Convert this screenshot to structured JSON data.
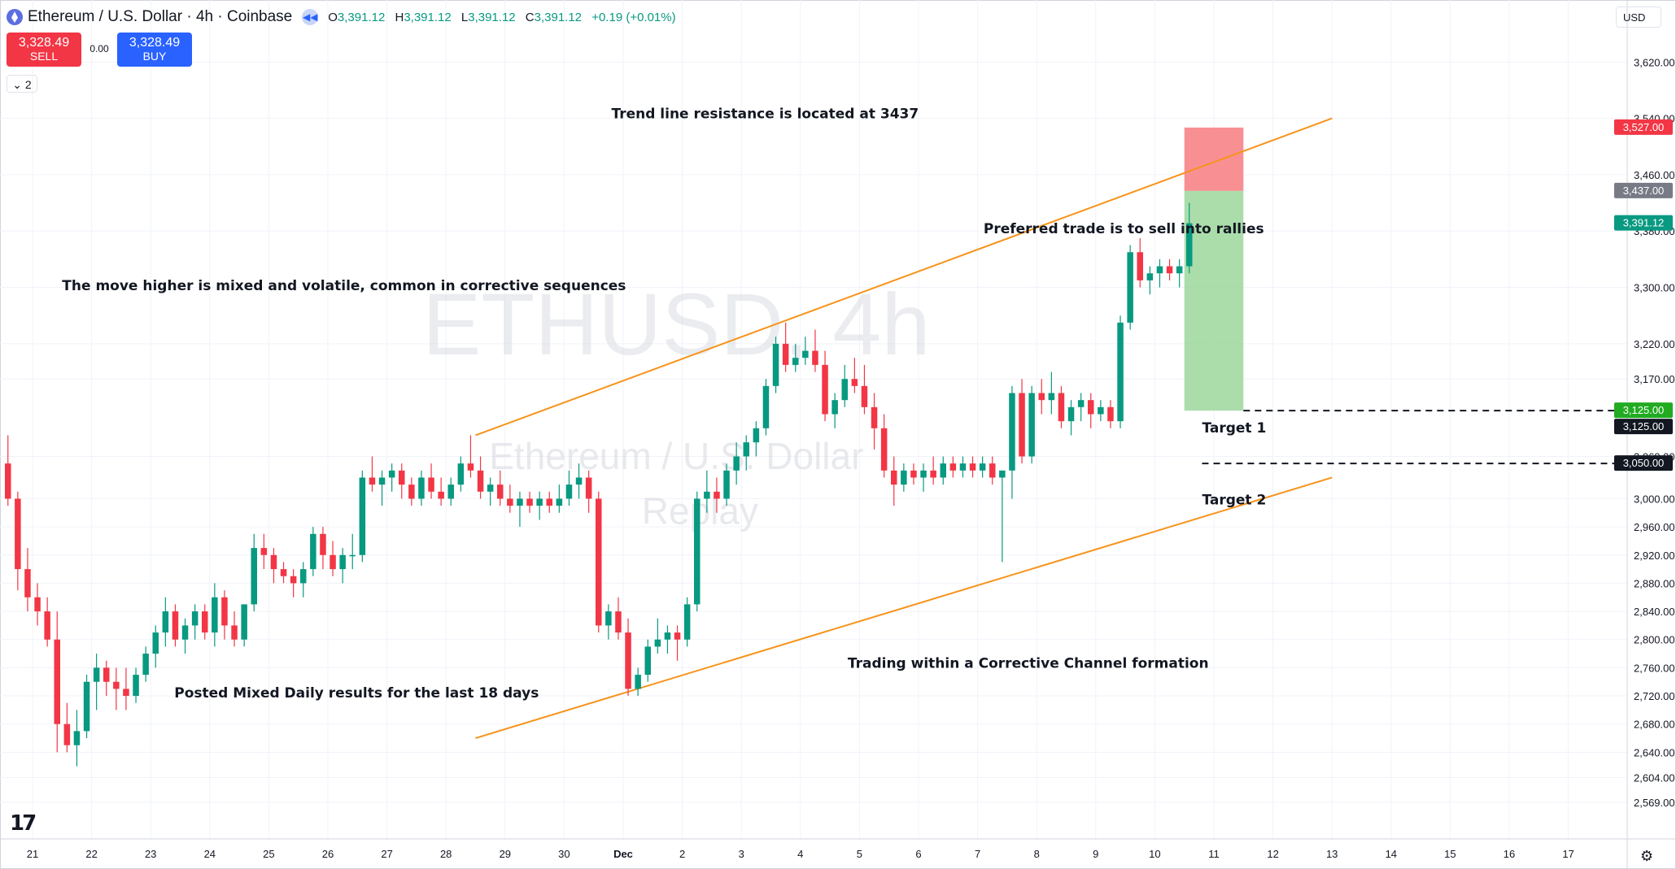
{
  "header": {
    "title": "Ethereum / U.S. Dollar · 4h · Coinbase",
    "ohlc": [
      {
        "k": "O",
        "v": "3,391.12"
      },
      {
        "k": "H",
        "v": "3,391.12"
      },
      {
        "k": "L",
        "v": "3,391.12"
      },
      {
        "k": "C",
        "v": "3,391.12"
      }
    ],
    "change": "+0.19 (+0.01%)"
  },
  "trade": {
    "sell_price": "3,328.49",
    "sell_label": "SELL",
    "spread": "0.00",
    "buy_price": "3,328.49",
    "buy_label": "BUY",
    "collapse_label": "⌄ 2"
  },
  "currency": "USD",
  "logo_text": "17",
  "colors": {
    "up": "#089981",
    "down": "#f23645",
    "channel": "#f7931a",
    "grid": "#f0f3fa",
    "stop": "#f77c80",
    "target": "#8fd18f"
  },
  "chart_data": {
    "type": "candlestick",
    "ylim": [
      2540,
      3685
    ],
    "y_ticks": [
      3620,
      3540,
      3460,
      3380,
      3300,
      3220,
      3170,
      3060,
      3000,
      2960,
      2920,
      2880,
      2840,
      2800,
      2760,
      2720,
      2680,
      2640,
      2604,
      2569
    ],
    "y_tick_labels": [
      "3,620.00",
      "3,540.00",
      "3,460.00",
      "3,380.00",
      "3,300.00",
      "3,220.00",
      "3,170.00",
      "3,060.00",
      "3,000.00",
      "2,960.00",
      "2,920.00",
      "2,880.00",
      "2,840.00",
      "2,800.00",
      "2,760.00",
      "2,720.00",
      "2,680.00",
      "2,640.00",
      "2,604.00",
      "2,569.00"
    ],
    "x_ticks": [
      "21",
      "22",
      "23",
      "24",
      "25",
      "26",
      "27",
      "28",
      "29",
      "30",
      "Dec",
      "2",
      "3",
      "4",
      "5",
      "6",
      "7",
      "8",
      "9",
      "10",
      "11",
      "12",
      "13",
      "14",
      "15",
      "16",
      "17"
    ],
    "candles_per_day": 6,
    "first_candle_offset_days": -0.5,
    "candles": [
      [
        3050,
        3090,
        2990,
        3000
      ],
      [
        3000,
        3010,
        2870,
        2900
      ],
      [
        2900,
        2930,
        2840,
        2860
      ],
      [
        2860,
        2880,
        2820,
        2840
      ],
      [
        2840,
        2860,
        2790,
        2800
      ],
      [
        2800,
        2840,
        2640,
        2680
      ],
      [
        2680,
        2710,
        2640,
        2650
      ],
      [
        2650,
        2700,
        2620,
        2670
      ],
      [
        2670,
        2750,
        2660,
        2740
      ],
      [
        2740,
        2780,
        2700,
        2760
      ],
      [
        2760,
        2770,
        2720,
        2740
      ],
      [
        2740,
        2760,
        2700,
        2730
      ],
      [
        2730,
        2760,
        2700,
        2720
      ],
      [
        2720,
        2760,
        2710,
        2750
      ],
      [
        2750,
        2790,
        2740,
        2780
      ],
      [
        2780,
        2820,
        2760,
        2810
      ],
      [
        2810,
        2860,
        2790,
        2840
      ],
      [
        2840,
        2850,
        2790,
        2800
      ],
      [
        2800,
        2830,
        2780,
        2820
      ],
      [
        2820,
        2850,
        2800,
        2840
      ],
      [
        2840,
        2850,
        2800,
        2810
      ],
      [
        2810,
        2880,
        2790,
        2860
      ],
      [
        2860,
        2870,
        2800,
        2820
      ],
      [
        2820,
        2840,
        2790,
        2800
      ],
      [
        2800,
        2850,
        2790,
        2850
      ],
      [
        2850,
        2950,
        2840,
        2930
      ],
      [
        2930,
        2950,
        2900,
        2920
      ],
      [
        2920,
        2930,
        2880,
        2900
      ],
      [
        2900,
        2910,
        2880,
        2890
      ],
      [
        2890,
        2900,
        2860,
        2880
      ],
      [
        2880,
        2910,
        2860,
        2900
      ],
      [
        2900,
        2960,
        2890,
        2950
      ],
      [
        2950,
        2960,
        2900,
        2920
      ],
      [
        2920,
        2940,
        2890,
        2900
      ],
      [
        2900,
        2930,
        2880,
        2920
      ],
      [
        2920,
        2950,
        2900,
        2920
      ],
      [
        2920,
        3040,
        2910,
        3030
      ],
      [
        3030,
        3060,
        3010,
        3020
      ],
      [
        3020,
        3040,
        2990,
        3030
      ],
      [
        3030,
        3050,
        3010,
        3040
      ],
      [
        3040,
        3050,
        3000,
        3020
      ],
      [
        3020,
        3030,
        2990,
        3000
      ],
      [
        3000,
        3040,
        2990,
        3030
      ],
      [
        3030,
        3050,
        3000,
        3010
      ],
      [
        3010,
        3030,
        2990,
        3000
      ],
      [
        3000,
        3030,
        2990,
        3020
      ],
      [
        3020,
        3060,
        3010,
        3050
      ],
      [
        3050,
        3090,
        3030,
        3040
      ],
      [
        3040,
        3060,
        3000,
        3010
      ],
      [
        3010,
        3030,
        2990,
        3020
      ],
      [
        3020,
        3040,
        2990,
        3000
      ],
      [
        3000,
        3020,
        2980,
        2990
      ],
      [
        2990,
        3010,
        2960,
        3000
      ],
      [
        3000,
        3010,
        2980,
        2990
      ],
      [
        2990,
        3010,
        2970,
        3000
      ],
      [
        3000,
        3010,
        2980,
        2990
      ],
      [
        2990,
        3020,
        2980,
        3000
      ],
      [
        3000,
        3040,
        2990,
        3020
      ],
      [
        3020,
        3050,
        3000,
        3030
      ],
      [
        3030,
        3040,
        2980,
        3000
      ],
      [
        3000,
        3010,
        2810,
        2820
      ],
      [
        2820,
        2850,
        2800,
        2840
      ],
      [
        2840,
        2860,
        2800,
        2810
      ],
      [
        2810,
        2830,
        2720,
        2730
      ],
      [
        2730,
        2760,
        2720,
        2750
      ],
      [
        2750,
        2800,
        2740,
        2790
      ],
      [
        2790,
        2830,
        2780,
        2800
      ],
      [
        2800,
        2820,
        2780,
        2810
      ],
      [
        2810,
        2820,
        2770,
        2800
      ],
      [
        2800,
        2860,
        2790,
        2850
      ],
      [
        2850,
        3010,
        2840,
        3000
      ],
      [
        3000,
        3040,
        2980,
        3010
      ],
      [
        3010,
        3030,
        2980,
        3000
      ],
      [
        3000,
        3050,
        2990,
        3040
      ],
      [
        3040,
        3080,
        3020,
        3060
      ],
      [
        3060,
        3090,
        3040,
        3080
      ],
      [
        3080,
        3110,
        3060,
        3100
      ],
      [
        3100,
        3170,
        3090,
        3160
      ],
      [
        3160,
        3230,
        3150,
        3220
      ],
      [
        3220,
        3250,
        3180,
        3190
      ],
      [
        3190,
        3220,
        3180,
        3200
      ],
      [
        3200,
        3230,
        3190,
        3210
      ],
      [
        3210,
        3240,
        3180,
        3190
      ],
      [
        3190,
        3210,
        3110,
        3120
      ],
      [
        3120,
        3150,
        3100,
        3140
      ],
      [
        3140,
        3190,
        3130,
        3170
      ],
      [
        3170,
        3200,
        3150,
        3160
      ],
      [
        3160,
        3190,
        3120,
        3130
      ],
      [
        3130,
        3150,
        3070,
        3100
      ],
      [
        3100,
        3120,
        3030,
        3040
      ],
      [
        3040,
        3060,
        2990,
        3020
      ],
      [
        3020,
        3050,
        3010,
        3040
      ],
      [
        3040,
        3050,
        3020,
        3030
      ],
      [
        3030,
        3050,
        3010,
        3040
      ],
      [
        3040,
        3060,
        3020,
        3030
      ],
      [
        3030,
        3060,
        3020,
        3050
      ],
      [
        3050,
        3060,
        3030,
        3040
      ],
      [
        3040,
        3060,
        3030,
        3050
      ],
      [
        3050,
        3060,
        3030,
        3040
      ],
      [
        3040,
        3060,
        3030,
        3050
      ],
      [
        3050,
        3060,
        3020,
        3030
      ],
      [
        3030,
        3040,
        2910,
        3040
      ],
      [
        3040,
        3160,
        3000,
        3150
      ],
      [
        3150,
        3170,
        3050,
        3060
      ],
      [
        3060,
        3160,
        3050,
        3150
      ],
      [
        3150,
        3170,
        3120,
        3140
      ],
      [
        3140,
        3180,
        3120,
        3150
      ],
      [
        3150,
        3160,
        3100,
        3110
      ],
      [
        3110,
        3140,
        3090,
        3130
      ],
      [
        3130,
        3150,
        3110,
        3140
      ],
      [
        3140,
        3150,
        3100,
        3120
      ],
      [
        3120,
        3140,
        3110,
        3130
      ],
      [
        3130,
        3140,
        3100,
        3110
      ],
      [
        3110,
        3260,
        3100,
        3250
      ],
      [
        3250,
        3360,
        3240,
        3350
      ],
      [
        3350,
        3370,
        3300,
        3310
      ],
      [
        3310,
        3330,
        3290,
        3320
      ],
      [
        3320,
        3340,
        3300,
        3330
      ],
      [
        3330,
        3340,
        3310,
        3320
      ],
      [
        3320,
        3340,
        3300,
        3330
      ],
      [
        3330,
        3420,
        3320,
        3391.12
      ]
    ],
    "annotations": [
      {
        "text": "Trend line resistance is located at 3437",
        "date": 9.8,
        "price": 3540
      },
      {
        "text": "The move higher is mixed and volatile, common in corrective sequences",
        "date": 0.5,
        "price": 3296
      },
      {
        "text": "Preferred trade is to sell into rallies",
        "date": 16.1,
        "price": 3377
      },
      {
        "text": "Posted Mixed Daily results for the last 18 days",
        "date": 2.4,
        "price": 2718
      },
      {
        "text": "Trading within a Corrective Channel formation",
        "date": 13.8,
        "price": 2760
      },
      {
        "text": "Target 1",
        "date": 19.8,
        "price": 3094
      },
      {
        "text": "Target 2",
        "date": 19.8,
        "price": 2992
      }
    ],
    "channel_lines": [
      {
        "from": [
          7.5,
          3090
        ],
        "to": [
          22.0,
          3540
        ]
      },
      {
        "from": [
          7.5,
          2660
        ],
        "to": [
          22.0,
          3030
        ]
      }
    ],
    "position": {
      "from_day": 19.5,
      "to_day": 20.5,
      "stop": 3527,
      "entry": 3437,
      "target": 3125
    },
    "dashed_levels": [
      {
        "from_day": 20.5,
        "price": 3125
      },
      {
        "from_day": 19.8,
        "price": 3050
      }
    ],
    "price_labels": [
      {
        "price": 3527,
        "label": "3,527.00",
        "bg": "#f23645"
      },
      {
        "price": 3437,
        "label": "3,437.00",
        "bg": "#787b86"
      },
      {
        "price": 3391.12,
        "label": "3,391.12",
        "bg": "#089981"
      },
      {
        "price": 3125,
        "label": "3,125.00",
        "bg": "#22ab22"
      },
      {
        "price": 3125,
        "label": "3,125.00",
        "bg": "#131722"
      },
      {
        "price": 3050,
        "label": "3,050.00",
        "bg": "#131722"
      }
    ],
    "watermark": [
      "ETHUSD, 4h",
      "Ethereum / U.S. Dollar",
      "Replay"
    ]
  }
}
